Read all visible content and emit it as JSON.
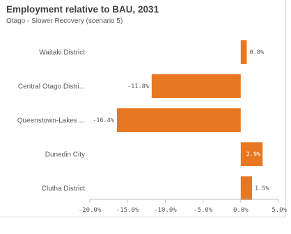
{
  "header": {
    "title": "Employment relative to BAU, 2031",
    "subtitle": "Otago - Slower Recovery (scenario 5)"
  },
  "colors": {
    "bar": "#e87722",
    "axis": "#bfbfbf",
    "text": "#595959"
  },
  "chart_data": {
    "type": "bar",
    "orientation": "horizontal",
    "title": "Employment relative to BAU, 2031",
    "subtitle": "Otago - Slower Recovery (scenario 5)",
    "categories": [
      "Waitaki District",
      "Central Otago Distri...",
      "Queenstown-Lakes ...",
      "Dunedin City",
      "Clutha District"
    ],
    "values": [
      0.8,
      -11.8,
      -16.4,
      2.9,
      1.5
    ],
    "data_labels": [
      "0.8%",
      "-11.8%",
      "-16.4%",
      "2.9%",
      "1.5%"
    ],
    "xlim": [
      -20,
      5
    ],
    "x_ticks": [
      -20,
      -15,
      -10,
      -5,
      0,
      5
    ],
    "x_tick_labels": [
      "-20.0%",
      "-15.0%",
      "-10.0%",
      "-5.0%",
      "0.0%",
      "5.0%"
    ],
    "xlabel": "",
    "ylabel": "",
    "grid": false,
    "legend": "none"
  }
}
